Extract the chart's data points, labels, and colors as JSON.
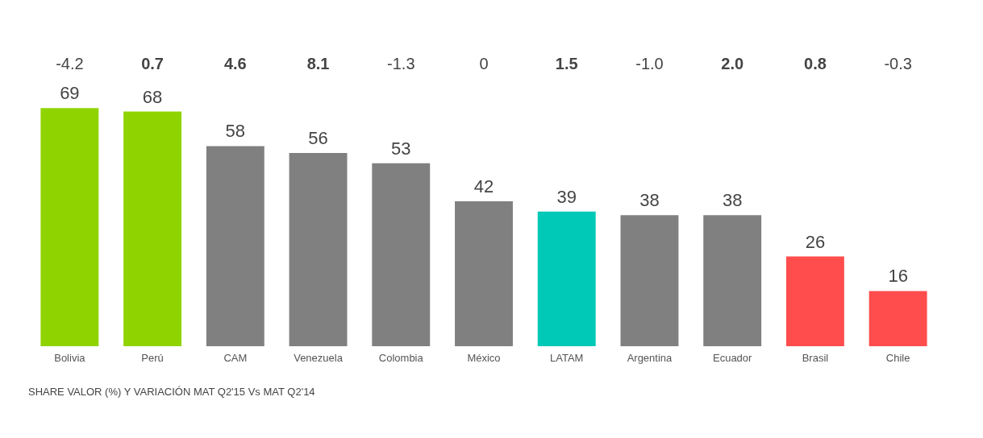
{
  "chart_data": {
    "type": "bar",
    "title": "SHARE VALOR (%) Y VARIACIÓN MAT Q2'15 Vs MAT Q2'14",
    "categories": [
      "Bolivia",
      "Perú",
      "CAM",
      "Venezuela",
      "Colombia",
      "México",
      "LATAM",
      "Argentina",
      "Ecuador",
      "Brasil",
      "Chile"
    ],
    "values": [
      69,
      68,
      58,
      56,
      53,
      42,
      39,
      38,
      38,
      26,
      16
    ],
    "colors": [
      "#8fd400",
      "#8fd400",
      "#808080",
      "#808080",
      "#808080",
      "#808080",
      "#00c9b7",
      "#808080",
      "#808080",
      "#ff4d4d",
      "#ff4d4d"
    ],
    "data_labels": true,
    "annotations": [
      "-4.2",
      "0.7",
      "4.6",
      "8.1",
      "-1.3",
      "0",
      "1.5",
      "-1.0",
      "2.0",
      "0.8",
      "-0.3"
    ]
  }
}
